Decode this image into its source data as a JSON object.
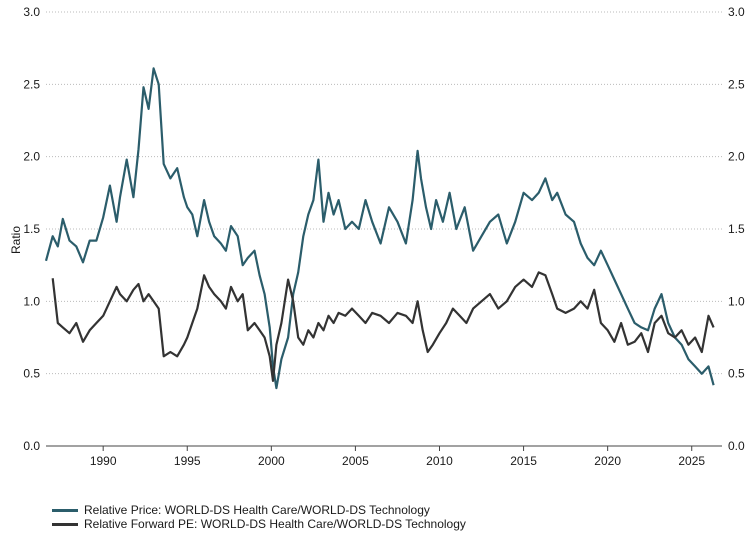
{
  "chart_data": {
    "type": "line",
    "title": "",
    "xlabel": "",
    "ylabel": "Ratio",
    "xlim": [
      1986.6,
      2026.8
    ],
    "ylim": [
      0.0,
      3.0
    ],
    "yticks": [
      "0.0",
      "0.5",
      "1.0",
      "1.5",
      "2.0",
      "2.5",
      "3.0"
    ],
    "xticks": [
      "1990",
      "1995",
      "2000",
      "2005",
      "2010",
      "2015",
      "2020",
      "2025"
    ],
    "grid": "horizontal dotted",
    "legend_position": "bottom-left",
    "series": [
      {
        "name": "Relative Price: WORLD-DS Health Care/WORLD-DS Technology",
        "color": "#2b5d6b",
        "x": [
          1986.6,
          1987.0,
          1987.3,
          1987.6,
          1988.0,
          1988.4,
          1988.8,
          1989.2,
          1989.6,
          1990.0,
          1990.4,
          1990.8,
          1991.0,
          1991.4,
          1991.8,
          1992.1,
          1992.4,
          1992.7,
          1993.0,
          1993.3,
          1993.6,
          1994.0,
          1994.4,
          1994.8,
          1995.0,
          1995.3,
          1995.6,
          1996.0,
          1996.3,
          1996.6,
          1997.0,
          1997.3,
          1997.6,
          1998.0,
          1998.3,
          1998.6,
          1999.0,
          1999.3,
          1999.6,
          1999.9,
          2000.1,
          2000.3,
          2000.6,
          2001.0,
          2001.3,
          2001.6,
          2001.9,
          2002.2,
          2002.5,
          2002.8,
          2003.1,
          2003.4,
          2003.7,
          2004.0,
          2004.4,
          2004.8,
          2005.2,
          2005.6,
          2006.0,
          2006.5,
          2007.0,
          2007.5,
          2008.0,
          2008.4,
          2008.7,
          2008.9,
          2009.2,
          2009.5,
          2009.8,
          2010.2,
          2010.6,
          2011.0,
          2011.5,
          2012.0,
          2012.5,
          2013.0,
          2013.5,
          2014.0,
          2014.5,
          2015.0,
          2015.5,
          2015.9,
          2016.3,
          2016.7,
          2017.0,
          2017.5,
          2018.0,
          2018.4,
          2018.8,
          2019.2,
          2019.6,
          2020.0,
          2020.4,
          2020.8,
          2021.2,
          2021.6,
          2022.0,
          2022.4,
          2022.8,
          2023.2,
          2023.6,
          2024.0,
          2024.4,
          2024.8,
          2025.2,
          2025.6,
          2026.0,
          2026.3
        ],
        "values": [
          1.28,
          1.45,
          1.38,
          1.57,
          1.42,
          1.38,
          1.27,
          1.42,
          1.42,
          1.58,
          1.8,
          1.55,
          1.72,
          1.98,
          1.72,
          2.05,
          2.48,
          2.33,
          2.61,
          2.5,
          1.95,
          1.85,
          1.92,
          1.72,
          1.65,
          1.6,
          1.45,
          1.7,
          1.55,
          1.45,
          1.4,
          1.35,
          1.52,
          1.45,
          1.25,
          1.3,
          1.35,
          1.18,
          1.05,
          0.82,
          0.55,
          0.4,
          0.6,
          0.75,
          1.05,
          1.2,
          1.45,
          1.6,
          1.7,
          1.98,
          1.55,
          1.75,
          1.6,
          1.7,
          1.5,
          1.55,
          1.5,
          1.7,
          1.55,
          1.4,
          1.65,
          1.55,
          1.4,
          1.7,
          2.04,
          1.85,
          1.65,
          1.5,
          1.7,
          1.55,
          1.75,
          1.5,
          1.65,
          1.35,
          1.45,
          1.55,
          1.6,
          1.4,
          1.55,
          1.75,
          1.7,
          1.75,
          1.85,
          1.7,
          1.75,
          1.6,
          1.55,
          1.4,
          1.3,
          1.25,
          1.35,
          1.25,
          1.15,
          1.05,
          0.95,
          0.85,
          0.82,
          0.8,
          0.95,
          1.05,
          0.85,
          0.75,
          0.7,
          0.6,
          0.55,
          0.5,
          0.55,
          0.42
        ]
      },
      {
        "name": "Relative Forward PE: WORLD-DS Health Care/WORLD-DS Technology",
        "color": "#333333",
        "x": [
          1987.0,
          1987.3,
          1987.6,
          1988.0,
          1988.4,
          1988.8,
          1989.2,
          1989.6,
          1990.0,
          1990.4,
          1990.8,
          1991.0,
          1991.4,
          1991.8,
          1992.1,
          1992.4,
          1992.7,
          1993.0,
          1993.3,
          1993.6,
          1994.0,
          1994.4,
          1994.8,
          1995.0,
          1995.3,
          1995.6,
          1996.0,
          1996.3,
          1996.6,
          1997.0,
          1997.3,
          1997.6,
          1998.0,
          1998.3,
          1998.6,
          1999.0,
          1999.3,
          1999.6,
          1999.9,
          2000.1,
          2000.3,
          2000.6,
          2001.0,
          2001.3,
          2001.6,
          2001.9,
          2002.2,
          2002.5,
          2002.8,
          2003.1,
          2003.4,
          2003.7,
          2004.0,
          2004.4,
          2004.8,
          2005.2,
          2005.6,
          2006.0,
          2006.5,
          2007.0,
          2007.5,
          2008.0,
          2008.4,
          2008.7,
          2009.0,
          2009.3,
          2009.6,
          2010.0,
          2010.4,
          2010.8,
          2011.2,
          2011.6,
          2012.0,
          2012.5,
          2013.0,
          2013.5,
          2014.0,
          2014.5,
          2015.0,
          2015.5,
          2015.9,
          2016.3,
          2016.7,
          2017.0,
          2017.5,
          2018.0,
          2018.4,
          2018.8,
          2019.2,
          2019.6,
          2020.0,
          2020.4,
          2020.8,
          2021.2,
          2021.6,
          2022.0,
          2022.4,
          2022.8,
          2023.2,
          2023.6,
          2024.0,
          2024.4,
          2024.8,
          2025.2,
          2025.6,
          2026.0,
          2026.3
        ],
        "values": [
          1.16,
          0.85,
          0.82,
          0.78,
          0.85,
          0.72,
          0.8,
          0.85,
          0.9,
          1.0,
          1.1,
          1.05,
          1.0,
          1.08,
          1.12,
          1.0,
          1.05,
          1.0,
          0.95,
          0.62,
          0.65,
          0.62,
          0.7,
          0.75,
          0.85,
          0.95,
          1.18,
          1.1,
          1.05,
          1.0,
          0.95,
          1.1,
          1.0,
          1.05,
          0.8,
          0.85,
          0.8,
          0.75,
          0.62,
          0.45,
          0.7,
          0.85,
          1.15,
          1.0,
          0.75,
          0.7,
          0.8,
          0.75,
          0.85,
          0.8,
          0.9,
          0.85,
          0.92,
          0.9,
          0.95,
          0.9,
          0.85,
          0.92,
          0.9,
          0.85,
          0.92,
          0.9,
          0.85,
          1.0,
          0.8,
          0.65,
          0.7,
          0.78,
          0.85,
          0.95,
          0.9,
          0.85,
          0.95,
          1.0,
          1.05,
          0.95,
          1.0,
          1.1,
          1.15,
          1.1,
          1.2,
          1.18,
          1.05,
          0.95,
          0.92,
          0.95,
          1.0,
          0.95,
          1.08,
          0.85,
          0.8,
          0.72,
          0.85,
          0.7,
          0.72,
          0.78,
          0.65,
          0.85,
          0.9,
          0.78,
          0.75,
          0.8,
          0.7,
          0.75,
          0.65,
          0.9,
          0.82
        ]
      }
    ]
  }
}
